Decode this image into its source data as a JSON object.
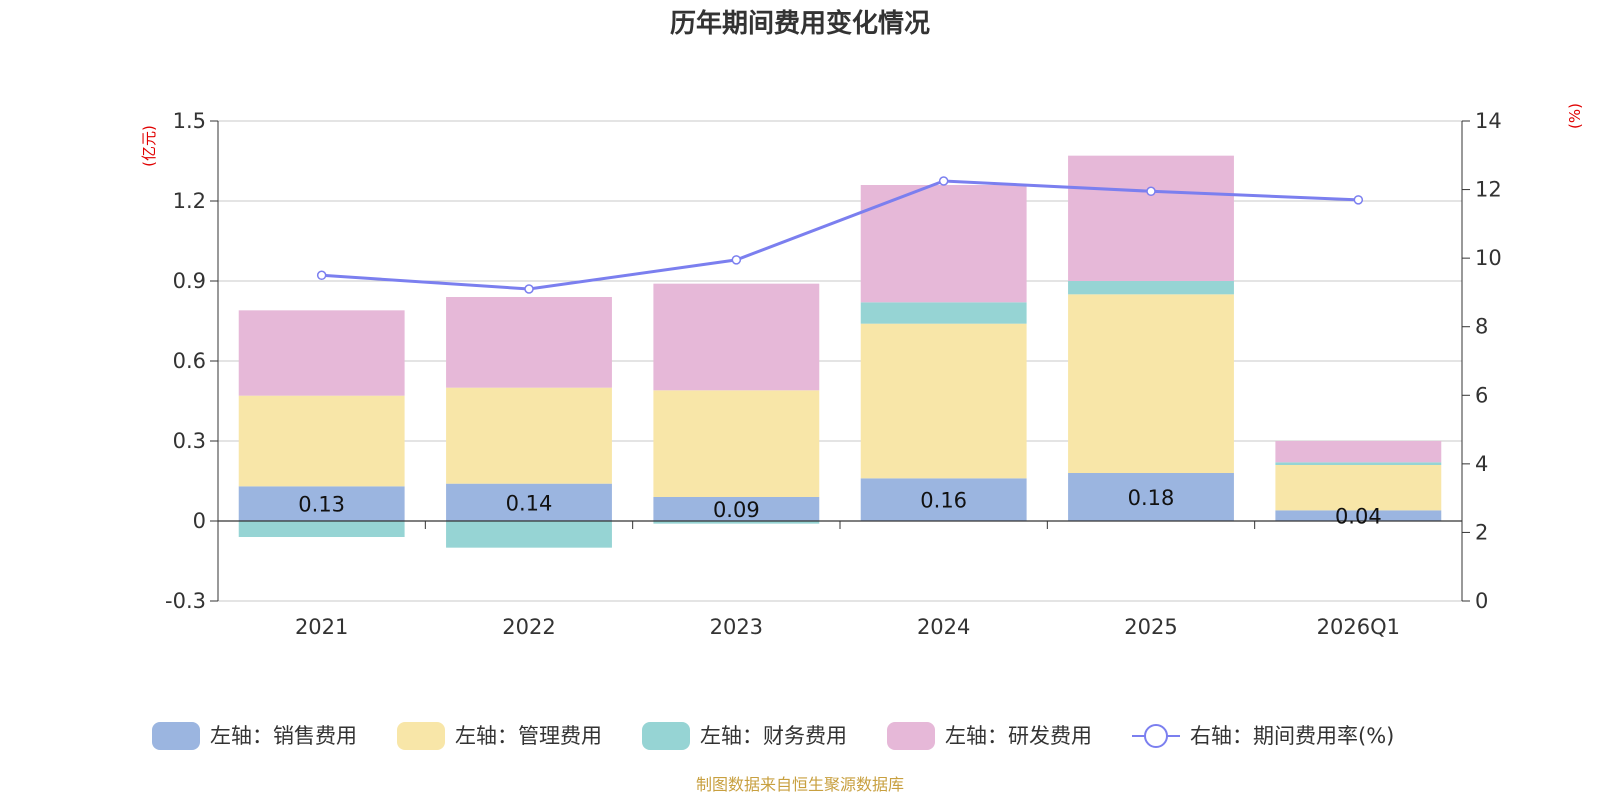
{
  "chart_data": {
    "type": "bar",
    "title": "历年期间费用变化情况",
    "categories": [
      "2021",
      "2022",
      "2023",
      "2024",
      "2025",
      "2026Q1"
    ],
    "left_axis": {
      "unit": "(亿元)",
      "ylim": [
        -0.3,
        1.5
      ],
      "ticks": [
        -0.3,
        0,
        0.3,
        0.6,
        0.9,
        1.2,
        1.5
      ],
      "tick_labels": [
        "-0.3",
        "0",
        "0.3",
        "0.6",
        "0.9",
        "1.2",
        "1.5"
      ]
    },
    "right_axis": {
      "unit": "(%)",
      "ylim": [
        0,
        14
      ],
      "ticks": [
        0,
        2,
        4,
        6,
        8,
        10,
        12,
        14
      ],
      "tick_labels": [
        "0",
        "2",
        "4",
        "6",
        "8",
        "10",
        "12",
        "14"
      ]
    },
    "series": [
      {
        "name": "左轴：销售费用",
        "type": "bar",
        "axis": "left",
        "color": "#9bb5e0",
        "values": [
          0.13,
          0.14,
          0.09,
          0.16,
          0.18,
          0.04
        ],
        "labels": [
          "0.13",
          "0.14",
          "0.09",
          "0.16",
          "0.18",
          "0.04"
        ]
      },
      {
        "name": "左轴：管理费用",
        "type": "bar",
        "axis": "left",
        "color": "#f8e6a8",
        "values": [
          0.34,
          0.36,
          0.4,
          0.58,
          0.67,
          0.17
        ]
      },
      {
        "name": "左轴：财务费用",
        "type": "bar",
        "axis": "left",
        "color": "#96d4d4",
        "values": [
          -0.06,
          -0.1,
          -0.01,
          0.08,
          0.05,
          0.01
        ]
      },
      {
        "name": "左轴：研发费用",
        "type": "bar",
        "axis": "left",
        "color": "#e6b8d8",
        "values": [
          0.32,
          0.34,
          0.4,
          0.44,
          0.47,
          0.08
        ]
      },
      {
        "name": "右轴：期间费用率(%)",
        "type": "line",
        "axis": "right",
        "color": "#7b7fef",
        "values": [
          9.5,
          9.1,
          9.95,
          12.25,
          11.95,
          11.7
        ]
      }
    ],
    "grid": true,
    "legend": "bottom"
  },
  "source_note": "制图数据来自恒生聚源数据库"
}
